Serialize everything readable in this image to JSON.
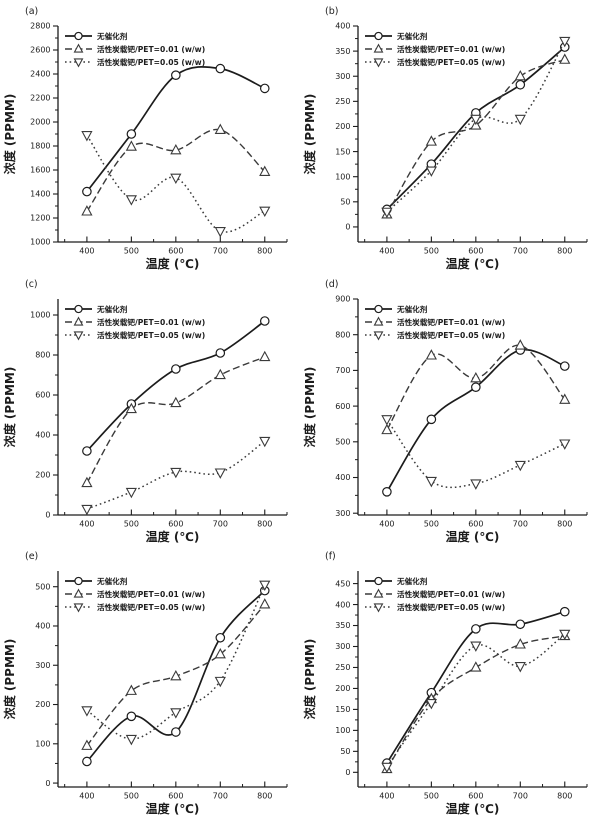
{
  "figure": {
    "background": "#ffffff",
    "ink_color": "#1c1c1c",
    "marker_fill": "#ffffff",
    "x_axis_label": "温度 (℃)",
    "y_axis_label": "浓度 (PPMM)",
    "x_ticks": [
      400,
      500,
      600,
      700,
      800
    ],
    "x_minor_ticks": [
      350,
      450,
      550,
      650,
      750,
      850
    ],
    "legend_labels": [
      "无催化剂",
      "活性炭载钯/PET=0.01 (w/w)",
      "活性炭载钯/PET=0.05 (w/w)"
    ]
  },
  "chart_data": [
    {
      "type": "line",
      "panel_label": "(a)",
      "xlabel": "温度 (℃)",
      "ylabel": "浓度 (PPMM)",
      "x": [
        400,
        500,
        600,
        700,
        800
      ],
      "xlim": [
        335,
        850
      ],
      "ylim": [
        1000,
        2800
      ],
      "yticks": [
        1000,
        1200,
        1400,
        1600,
        1800,
        2000,
        2200,
        2400,
        2600,
        2800
      ],
      "grid": false,
      "legend_position": "top-left",
      "series": [
        {
          "name": "无催化剂",
          "marker": "circle",
          "line_style": "solid",
          "color": "#1c1c1c",
          "values": [
            1420,
            1900,
            2390,
            2445,
            2280
          ]
        },
        {
          "name": "活性炭载钯/PET=0.01 (w/w)",
          "marker": "triangle-up",
          "line_style": "dashed",
          "color": "#3a3a3a",
          "values": [
            1255,
            1795,
            1765,
            1935,
            1585
          ]
        },
        {
          "name": "活性炭载钯/PET=0.05 (w/w)",
          "marker": "triangle-down",
          "line_style": "dotted",
          "color": "#3a3a3a",
          "values": [
            1890,
            1355,
            1535,
            1090,
            1260
          ]
        }
      ]
    },
    {
      "type": "line",
      "panel_label": "(b)",
      "xlabel": "温度 (℃)",
      "ylabel": "浓度 (PPMM)",
      "x": [
        400,
        500,
        600,
        700,
        800
      ],
      "xlim": [
        335,
        850
      ],
      "ylim": [
        -30,
        400
      ],
      "yticks": [
        0,
        50,
        100,
        150,
        200,
        250,
        300,
        350,
        400
      ],
      "grid": false,
      "legend_position": "top-left",
      "series": [
        {
          "name": "无催化剂",
          "marker": "circle",
          "line_style": "solid",
          "color": "#1c1c1c",
          "values": [
            35,
            125,
            227,
            283,
            358
          ]
        },
        {
          "name": "活性炭载钯/PET=0.01 (w/w)",
          "marker": "triangle-up",
          "line_style": "dashed",
          "color": "#3a3a3a",
          "values": [
            25,
            170,
            202,
            300,
            333
          ]
        },
        {
          "name": "活性炭载钯/PET=0.05 (w/w)",
          "marker": "triangle-down",
          "line_style": "dotted",
          "color": "#3a3a3a",
          "values": [
            30,
            112,
            215,
            215,
            370
          ]
        }
      ]
    },
    {
      "type": "line",
      "panel_label": "(c)",
      "xlabel": "温度 (℃)",
      "ylabel": "浓度 (PPMM)",
      "x": [
        400,
        500,
        600,
        700,
        800
      ],
      "xlim": [
        335,
        850
      ],
      "ylim": [
        0,
        1080
      ],
      "yticks": [
        0,
        200,
        400,
        600,
        800,
        1000
      ],
      "grid": false,
      "legend_position": "top-left",
      "series": [
        {
          "name": "无催化剂",
          "marker": "circle",
          "line_style": "solid",
          "color": "#1c1c1c",
          "values": [
            320,
            555,
            730,
            810,
            970
          ]
        },
        {
          "name": "活性炭载钯/PET=0.01 (w/w)",
          "marker": "triangle-up",
          "line_style": "dashed",
          "color": "#3a3a3a",
          "values": [
            160,
            530,
            560,
            700,
            790
          ]
        },
        {
          "name": "活性炭载钯/PET=0.05 (w/w)",
          "marker": "triangle-down",
          "line_style": "dotted",
          "color": "#3a3a3a",
          "values": [
            30,
            115,
            215,
            212,
            370
          ]
        }
      ]
    },
    {
      "type": "line",
      "panel_label": "(d)",
      "xlabel": "温度 (℃)",
      "ylabel": "浓度 (PPMM)",
      "x": [
        400,
        500,
        600,
        700,
        800
      ],
      "xlim": [
        335,
        850
      ],
      "ylim": [
        295,
        900
      ],
      "yticks": [
        300,
        400,
        500,
        600,
        700,
        800,
        900
      ],
      "grid": false,
      "legend_position": "top-left",
      "series": [
        {
          "name": "无催化剂",
          "marker": "circle",
          "line_style": "solid",
          "color": "#1c1c1c",
          "values": [
            360,
            563,
            653,
            757,
            712
          ]
        },
        {
          "name": "活性炭载钯/PET=0.01 (w/w)",
          "marker": "triangle-up",
          "line_style": "dashed",
          "color": "#3a3a3a",
          "values": [
            533,
            742,
            678,
            770,
            618
          ]
        },
        {
          "name": "活性炭载钯/PET=0.05 (w/w)",
          "marker": "triangle-down",
          "line_style": "dotted",
          "color": "#3a3a3a",
          "values": [
            563,
            390,
            383,
            435,
            495
          ]
        }
      ]
    },
    {
      "type": "line",
      "panel_label": "(e)",
      "xlabel": "温度 (℃)",
      "ylabel": "浓度 (PPMM)",
      "x": [
        400,
        500,
        600,
        700,
        800
      ],
      "xlim": [
        335,
        850
      ],
      "ylim": [
        -10,
        540
      ],
      "yticks": [
        0,
        100,
        200,
        300,
        400,
        500
      ],
      "grid": false,
      "legend_position": "top-left",
      "series": [
        {
          "name": "无催化剂",
          "marker": "circle",
          "line_style": "solid",
          "color": "#1c1c1c",
          "values": [
            55,
            170,
            130,
            370,
            490
          ]
        },
        {
          "name": "活性炭载钯/PET=0.01 (w/w)",
          "marker": "triangle-up",
          "line_style": "dashed",
          "color": "#3a3a3a",
          "values": [
            95,
            235,
            272,
            328,
            455
          ]
        },
        {
          "name": "活性炭载钯/PET=0.05 (w/w)",
          "marker": "triangle-down",
          "line_style": "dotted",
          "color": "#3a3a3a",
          "values": [
            185,
            112,
            180,
            260,
            505
          ]
        }
      ]
    },
    {
      "type": "line",
      "panel_label": "(f)",
      "xlabel": "温度 (℃)",
      "ylabel": "浓度 (PPMM)",
      "x": [
        400,
        500,
        600,
        700,
        800
      ],
      "xlim": [
        335,
        850
      ],
      "ylim": [
        -35,
        480
      ],
      "yticks": [
        0,
        50,
        100,
        150,
        200,
        250,
        300,
        350,
        400,
        450
      ],
      "grid": false,
      "legend_position": "top-left",
      "series": [
        {
          "name": "无催化剂",
          "marker": "circle",
          "line_style": "solid",
          "color": "#1c1c1c",
          "values": [
            22,
            190,
            342,
            353,
            383
          ]
        },
        {
          "name": "活性炭载钯/PET=0.01 (w/w)",
          "marker": "triangle-up",
          "line_style": "dashed",
          "color": "#3a3a3a",
          "values": [
            8,
            175,
            250,
            305,
            325
          ]
        },
        {
          "name": "活性炭载钯/PET=0.05 (w/w)",
          "marker": "triangle-down",
          "line_style": "dotted",
          "color": "#3a3a3a",
          "values": [
            13,
            165,
            302,
            253,
            330
          ]
        }
      ]
    }
  ]
}
